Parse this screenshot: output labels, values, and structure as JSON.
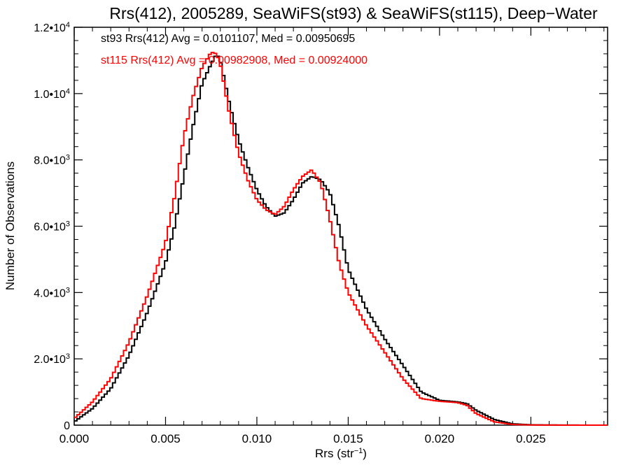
{
  "chart_data": {
    "type": "line",
    "title": "Rrs(412), 2005289, SeaWiFS(st93) & SeaWiFS(st115), Deep−Water",
    "xlabel": "Rrs (str⁻¹)",
    "ylabel": "Number of Observations",
    "xlim": [
      0,
      0.0292
    ],
    "ylim": [
      0,
      12000
    ],
    "x_ticks": [
      0.0,
      0.005,
      0.01,
      0.015,
      0.02,
      0.025
    ],
    "x_tick_labels": [
      "0.000",
      "0.005",
      "0.010",
      "0.015",
      "0.020",
      "0.025"
    ],
    "y_ticks": [
      0,
      2000,
      4000,
      6000,
      8000,
      10000,
      12000
    ],
    "y_tick_labels": [
      {
        "base": "0",
        "exp": ""
      },
      {
        "base": "2.0•10",
        "exp": "3"
      },
      {
        "base": "4.0•10",
        "exp": "3"
      },
      {
        "base": "6.0•10",
        "exp": "3"
      },
      {
        "base": "8.0•10",
        "exp": "3"
      },
      {
        "base": "1.0•10",
        "exp": "4"
      },
      {
        "base": "1.2•10",
        "exp": "4"
      }
    ],
    "grid": false,
    "annotations": [
      {
        "text": "st93 Rrs(412) Avg = 0.0101107, Med = 0.00950695",
        "color": "#000000"
      },
      {
        "text": "st115 Rrs(412) Avg = 0.00982908, Med = 0.00924000",
        "color": "#ff0000"
      }
    ],
    "series": [
      {
        "color": "#000000",
        "x": [
          0.0,
          0.001,
          0.002,
          0.003,
          0.004,
          0.005,
          0.0055,
          0.006,
          0.0065,
          0.007,
          0.0075,
          0.0078,
          0.008,
          0.0085,
          0.009,
          0.0095,
          0.01,
          0.0105,
          0.011,
          0.0115,
          0.012,
          0.0125,
          0.013,
          0.0135,
          0.014,
          0.0145,
          0.015,
          0.016,
          0.017,
          0.018,
          0.019,
          0.02,
          0.021,
          0.0215,
          0.022,
          0.023,
          0.024,
          0.025,
          0.026,
          0.027,
          0.028,
          0.029
        ],
        "y": [
          100,
          500,
          1100,
          2100,
          3400,
          4900,
          6000,
          7500,
          9000,
          10300,
          10900,
          11200,
          11000,
          9700,
          8600,
          7800,
          7100,
          6600,
          6300,
          6400,
          6800,
          7300,
          7500,
          7400,
          7000,
          6000,
          4700,
          3500,
          2600,
          1800,
          1000,
          750,
          700,
          650,
          450,
          170,
          40,
          10,
          5,
          2,
          1,
          0
        ]
      },
      {
        "color": "#ff0000",
        "x": [
          0.0,
          0.001,
          0.002,
          0.003,
          0.004,
          0.005,
          0.0055,
          0.006,
          0.0065,
          0.007,
          0.0075,
          0.0078,
          0.008,
          0.0085,
          0.009,
          0.0095,
          0.01,
          0.0105,
          0.011,
          0.0115,
          0.012,
          0.0125,
          0.013,
          0.0135,
          0.014,
          0.0145,
          0.015,
          0.016,
          0.017,
          0.018,
          0.019,
          0.02,
          0.021,
          0.0215,
          0.022,
          0.023,
          0.024,
          0.025,
          0.026,
          0.027,
          0.028,
          0.029
        ],
        "y": [
          200,
          700,
          1400,
          2500,
          3900,
          5500,
          6900,
          8700,
          9900,
          10800,
          11250,
          11200,
          10900,
          9400,
          8200,
          7400,
          6800,
          6500,
          6350,
          6600,
          7100,
          7500,
          7700,
          7300,
          6200,
          4900,
          4000,
          3000,
          2200,
          1400,
          800,
          720,
          680,
          600,
          350,
          100,
          20,
          5,
          2,
          1,
          0,
          0
        ]
      }
    ]
  }
}
